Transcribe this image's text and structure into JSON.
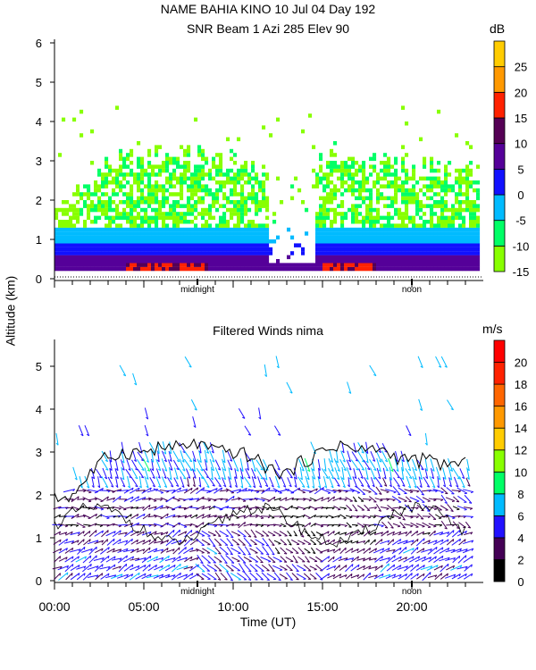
{
  "chart_data": [
    {
      "type": "heatmap",
      "title_line1": "NAME BAHIA KINO   10 Jul 04 Day 192",
      "title_line2": "SNR Beam 1 Azi 285 Elev 90",
      "ylabel": "Altitude (km)",
      "ylim": [
        0,
        6
      ],
      "yticks": [
        "0",
        "1",
        "2",
        "3",
        "4",
        "5",
        "6"
      ],
      "xlim_hours_ut": [
        0,
        24
      ],
      "markers": [
        {
          "label": "midnight",
          "hour_ut": 8
        },
        {
          "label": "noon",
          "hour_ut": 20
        }
      ],
      "colorbar": {
        "unit": "dB",
        "ticks": [
          "-15",
          "-10",
          "-5",
          "0",
          "5",
          "10",
          "15",
          "20",
          "25"
        ],
        "bins": [
          -15,
          -10,
          -5,
          0,
          5,
          10,
          15,
          20,
          25,
          30
        ],
        "colors": [
          "#88ff00",
          "#00ff66",
          "#00bbff",
          "#1111ff",
          "#550099",
          "#550055",
          "#ff2200",
          "#ff9900",
          "#ffcc00"
        ]
      },
      "echo_top_km_by_hour": [
        1.9,
        2.0,
        2.5,
        2.9,
        3.0,
        3.0,
        3.1,
        3.1,
        3.2,
        3.0,
        3.0,
        2.9,
        2.6,
        2.5,
        2.8,
        3.0,
        3.2,
        3.0,
        3.1,
        2.9,
        2.8,
        2.8,
        2.7,
        2.7
      ],
      "enhanced_near_surface_hours_ut": [
        [
          4,
          8.5
        ],
        [
          15,
          18
        ]
      ],
      "low_echo_gap_hours_ut": [
        12,
        14.5
      ]
    },
    {
      "type": "vector",
      "title": "Filtered Winds nima",
      "xlabel": "Time (UT)",
      "xticks": [
        "00:00",
        "05:00",
        "10:00",
        "15:00",
        "20:00"
      ],
      "ylim": [
        0,
        5.6
      ],
      "yticks": [
        "0",
        "1",
        "2",
        "3",
        "4",
        "5"
      ],
      "markers": [
        {
          "label": "midnight",
          "hour_ut": 8
        },
        {
          "label": "noon",
          "hour_ut": 20
        }
      ],
      "colorbar": {
        "unit": "m/s",
        "ticks": [
          "0",
          "2",
          "4",
          "6",
          "8",
          "10",
          "12",
          "14",
          "16",
          "18",
          "20"
        ],
        "bins": [
          0,
          2,
          4,
          6,
          8,
          10,
          12,
          14,
          16,
          18,
          20,
          22
        ],
        "colors": [
          "#000000",
          "#440055",
          "#2211ff",
          "#00bbff",
          "#00ff66",
          "#88ff00",
          "#ffcc00",
          "#ff9900",
          "#ff6600",
          "#ff2200",
          "#ff0000"
        ]
      },
      "speed_ms_by_altitude_km": {
        "altitude": [
          0.25,
          0.75,
          1.25,
          1.75,
          2.25,
          2.75,
          3.5,
          4.5
        ],
        "speed": [
          5,
          4.5,
          3,
          3,
          5,
          7,
          4,
          5
        ]
      }
    }
  ]
}
